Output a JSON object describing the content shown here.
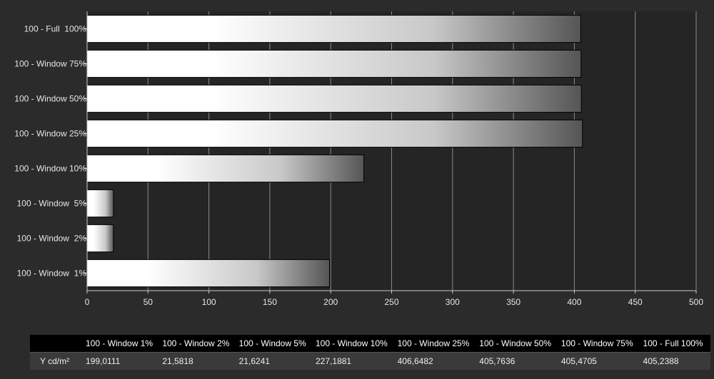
{
  "chart_data": {
    "type": "bar",
    "orientation": "horizontal",
    "categories": [
      "100 - Full  100%",
      "100 - Window 75%",
      "100 - Window 50%",
      "100 - Window 25%",
      "100 - Window 10%",
      "100 - Window  5%",
      "100 - Window  2%",
      "100 - Window  1%"
    ],
    "values": [
      405.2388,
      405.4705,
      405.7636,
      406.6482,
      227.1881,
      21.6241,
      21.5818,
      199.0111
    ],
    "xlim": [
      0,
      500
    ],
    "xticks": [
      "0",
      "50",
      "100",
      "150",
      "200",
      "250",
      "300",
      "350",
      "400",
      "450",
      "500"
    ],
    "grid": true,
    "colors": {
      "background": "#2b2b2b",
      "plot_bg": "#252525",
      "grid": "#8a8a8a",
      "bar_light": "#ffffff",
      "bar_dark": "#505050"
    }
  },
  "table": {
    "row_label": "Y cd/m²",
    "headers": [
      "100 - Window  1%",
      "100 - Window  2%",
      "100 - Window  5%",
      "100 - Window 10%",
      "100 - Window 25%",
      "100 - Window 50%",
      "100 - Window 75%",
      "100 - Full  100%"
    ],
    "values": [
      "199,0111",
      "21,5818",
      "21,6241",
      "227,1881",
      "406,6482",
      "405,7636",
      "405,4705",
      "405,2388"
    ]
  }
}
